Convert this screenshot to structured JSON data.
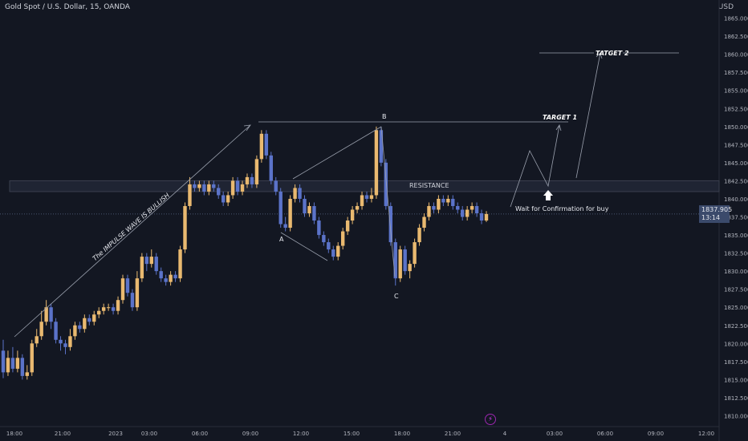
{
  "header": {
    "symbol": "Gold Spot / U.S. Dollar, 15, OANDA",
    "currency": "USD"
  },
  "price_tag": {
    "price": "1837.905",
    "countdown": "13:14"
  },
  "chart_data": {
    "type": "candlestick",
    "title": "Gold Spot / U.S. Dollar, 15, OANDA",
    "y_unit": "USD",
    "ylim": [
      1808.5,
      1867.5
    ],
    "y_ticks": [
      "1810.000",
      "1812.500",
      "1815.000",
      "1817.500",
      "1820.000",
      "1822.500",
      "1825.000",
      "1827.500",
      "1830.000",
      "1832.500",
      "1835.000",
      "1837.500",
      "1840.000",
      "1842.500",
      "1845.000",
      "1847.500",
      "1850.000",
      "1852.500",
      "1855.000",
      "1857.500",
      "1860.000",
      "1862.500",
      "1865.000"
    ],
    "x_ticks": [
      "18:00",
      "21:00",
      "2023",
      "03:00",
      "06:00",
      "09:00",
      "12:00",
      "15:00",
      "18:00",
      "21:00",
      "4",
      "03:00",
      "06:00",
      "09:00",
      "12:00"
    ],
    "current_price": 1837.905,
    "resistance_zone": [
      1841.0,
      1842.5
    ],
    "candles": [
      [
        1819,
        1816,
        1820.5,
        1815.2
      ],
      [
        1816,
        1818,
        1819,
        1815.5
      ],
      [
        1818,
        1816.5,
        1819.5,
        1816
      ],
      [
        1816.5,
        1818,
        1819,
        1816
      ],
      [
        1818,
        1815.5,
        1818.5,
        1815
      ],
      [
        1815.5,
        1816,
        1817,
        1815
      ],
      [
        1816,
        1820,
        1820.5,
        1815.5
      ],
      [
        1820,
        1821,
        1822,
        1819.5
      ],
      [
        1821,
        1823,
        1824.5,
        1820.5
      ],
      [
        1823,
        1825,
        1826,
        1822.5
      ],
      [
        1825,
        1823,
        1825.5,
        1822
      ],
      [
        1823,
        1820.5,
        1823.5,
        1820
      ],
      [
        1820.5,
        1820,
        1821,
        1819
      ],
      [
        1820,
        1819.5,
        1820.5,
        1818.5
      ],
      [
        1819.5,
        1821,
        1822,
        1819
      ],
      [
        1821,
        1822.5,
        1823,
        1820.5
      ],
      [
        1822.5,
        1822,
        1823,
        1821.5
      ],
      [
        1822,
        1823.5,
        1824,
        1821.5
      ],
      [
        1823.5,
        1823,
        1824,
        1822.5
      ],
      [
        1823,
        1824,
        1824.5,
        1822.5
      ],
      [
        1824,
        1824.5,
        1825,
        1823.5
      ],
      [
        1824.5,
        1825,
        1825.5,
        1824
      ],
      [
        1825,
        1825,
        1825.5,
        1824.5
      ],
      [
        1825,
        1824.5,
        1825.5,
        1824
      ],
      [
        1824.5,
        1826,
        1826.5,
        1824
      ],
      [
        1826,
        1829,
        1829.5,
        1825.5
      ],
      [
        1829,
        1827,
        1829.5,
        1826.5
      ],
      [
        1827,
        1825,
        1827.5,
        1824.5
      ],
      [
        1825,
        1829,
        1830,
        1824.5
      ],
      [
        1829,
        1832,
        1832.5,
        1828.5
      ],
      [
        1832,
        1831,
        1832.5,
        1830
      ],
      [
        1831,
        1832,
        1833,
        1830.5
      ],
      [
        1832,
        1830,
        1832.5,
        1829.5
      ],
      [
        1830,
        1829,
        1830.5,
        1828.5
      ],
      [
        1829,
        1828.5,
        1829.5,
        1828
      ],
      [
        1828.5,
        1829.5,
        1830,
        1828
      ],
      [
        1829.5,
        1829,
        1830,
        1828.5
      ],
      [
        1829,
        1833,
        1833.5,
        1828.5
      ],
      [
        1833,
        1839,
        1839.5,
        1832.5
      ],
      [
        1839,
        1842,
        1843,
        1838.5
      ],
      [
        1842,
        1841.5,
        1842.5,
        1841
      ],
      [
        1841.5,
        1842,
        1842.5,
        1841
      ],
      [
        1842,
        1841,
        1842.5,
        1840.5
      ],
      [
        1841,
        1842,
        1842.5,
        1840.5
      ],
      [
        1842,
        1841.5,
        1842.5,
        1841
      ],
      [
        1841.5,
        1840.5,
        1842,
        1840
      ],
      [
        1840.5,
        1839.5,
        1841,
        1839
      ],
      [
        1839.5,
        1840.5,
        1841,
        1839
      ],
      [
        1840.5,
        1842.5,
        1843,
        1840
      ],
      [
        1842.5,
        1841,
        1843,
        1840.5
      ],
      [
        1841,
        1842,
        1842.5,
        1840.5
      ],
      [
        1842,
        1843,
        1843.5,
        1841.5
      ],
      [
        1843,
        1842,
        1843.5,
        1841.5
      ],
      [
        1842,
        1845.5,
        1846,
        1841.5
      ],
      [
        1845.5,
        1849,
        1849.5,
        1845
      ],
      [
        1849,
        1846,
        1849.5,
        1845.5
      ],
      [
        1846,
        1842.5,
        1846.5,
        1842
      ],
      [
        1842.5,
        1841,
        1843,
        1840.5
      ],
      [
        1841,
        1836.5,
        1841.5,
        1836
      ],
      [
        1836.5,
        1836,
        1837.5,
        1835.5
      ],
      [
        1836,
        1840,
        1840.5,
        1835.5
      ],
      [
        1840,
        1841.5,
        1842,
        1839.5
      ],
      [
        1841.5,
        1840,
        1842,
        1839.5
      ],
      [
        1840,
        1838,
        1840.5,
        1837.5
      ],
      [
        1838,
        1839,
        1839.5,
        1837.5
      ],
      [
        1839,
        1837,
        1839.5,
        1836.5
      ],
      [
        1837,
        1835,
        1837.5,
        1834.5
      ],
      [
        1835,
        1834,
        1835.5,
        1833.5
      ],
      [
        1834,
        1833,
        1834.5,
        1832.5
      ],
      [
        1833,
        1832,
        1833.5,
        1831.5
      ],
      [
        1832,
        1833.5,
        1834,
        1831.5
      ],
      [
        1833.5,
        1835.5,
        1836,
        1833
      ],
      [
        1835.5,
        1837,
        1837.5,
        1835
      ],
      [
        1837,
        1838.5,
        1839,
        1836.5
      ],
      [
        1838.5,
        1839,
        1839.5,
        1838
      ],
      [
        1839,
        1840.5,
        1841,
        1838.5
      ],
      [
        1840.5,
        1840,
        1841,
        1839.5
      ],
      [
        1840,
        1840.5,
        1841.5,
        1839.5
      ],
      [
        1840.5,
        1849.5,
        1850,
        1840
      ],
      [
        1849.5,
        1845,
        1850,
        1844.5
      ],
      [
        1845,
        1839,
        1845.5,
        1838.5
      ],
      [
        1839,
        1834,
        1839.5,
        1833.5
      ],
      [
        1834,
        1829,
        1834.5,
        1828
      ],
      [
        1829,
        1833,
        1833.5,
        1828.5
      ],
      [
        1833,
        1830,
        1833.5,
        1829.5
      ],
      [
        1830,
        1831,
        1831.5,
        1829
      ],
      [
        1831,
        1834,
        1834.5,
        1830.5
      ],
      [
        1834,
        1836,
        1836.5,
        1833.5
      ],
      [
        1836,
        1837.5,
        1838,
        1835.5
      ],
      [
        1837.5,
        1839,
        1839.5,
        1837
      ],
      [
        1839,
        1838.5,
        1839.5,
        1838
      ],
      [
        1838.5,
        1840,
        1840.5,
        1838
      ],
      [
        1840,
        1839.5,
        1840.5,
        1839
      ],
      [
        1839.5,
        1840,
        1840.5,
        1839
      ],
      [
        1840,
        1839,
        1840.5,
        1838.5
      ],
      [
        1839,
        1838.5,
        1839.5,
        1838
      ],
      [
        1838.5,
        1837.5,
        1839,
        1837
      ],
      [
        1837.5,
        1838.5,
        1839,
        1837
      ],
      [
        1838.5,
        1839,
        1839.5,
        1838
      ],
      [
        1839,
        1838,
        1839.5,
        1837.5
      ],
      [
        1838,
        1837,
        1838.5,
        1836.5
      ],
      [
        1837,
        1837.9,
        1838.3,
        1836.8
      ]
    ],
    "annotations": {
      "wave_label": "The IMPULSE WAVE IS BULLISH",
      "point_a": "A",
      "point_b": "B",
      "point_c": "C",
      "resistance": "RESISTANCE",
      "target1": "TARGET 1",
      "target2": "TATGET 2",
      "buy_note": "Wait for Confirmation for buy"
    }
  }
}
